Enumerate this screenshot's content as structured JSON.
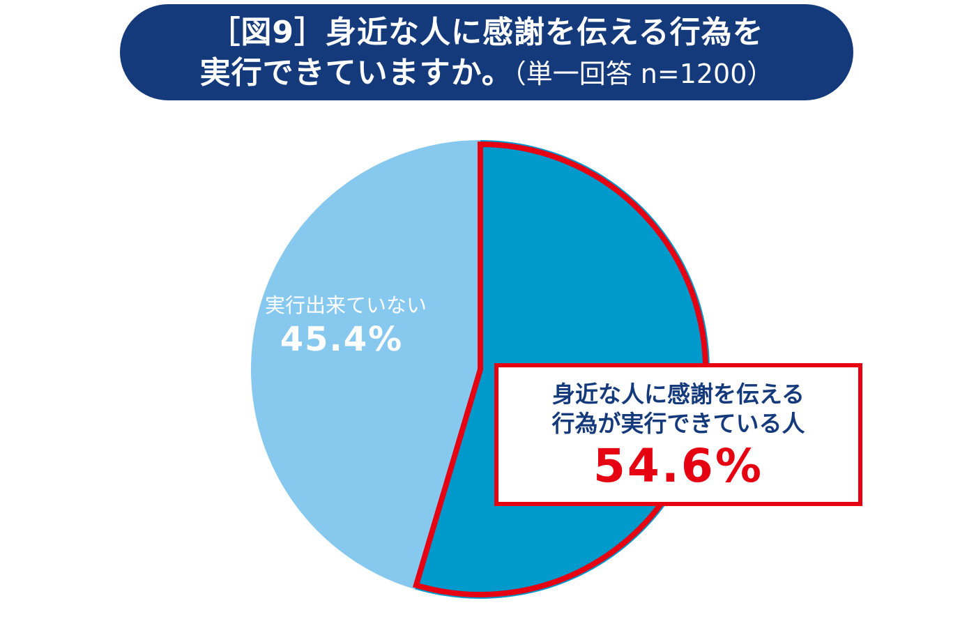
{
  "title": {
    "line1": "［図9］身近な人に感謝を伝える行為を",
    "line2_main": "実行できていますか。",
    "line2_note": "（単一回答 n=1200）"
  },
  "chart_data": {
    "type": "pie",
    "title": "［図9］身近な人に感謝を伝える行為を実行できていますか。（単一回答 n=1200）",
    "slices": [
      {
        "label_lines": [
          "身近な人に感謝を伝える",
          "行為が実行できている人"
        ],
        "value": 54.6,
        "value_text": "54.6%",
        "color": "#0099cc",
        "highlight": "#e50012"
      },
      {
        "label_lines": [
          "実行出来ていない"
        ],
        "value": 45.4,
        "value_text": "45.4%",
        "color": "#87c8ee"
      }
    ]
  }
}
